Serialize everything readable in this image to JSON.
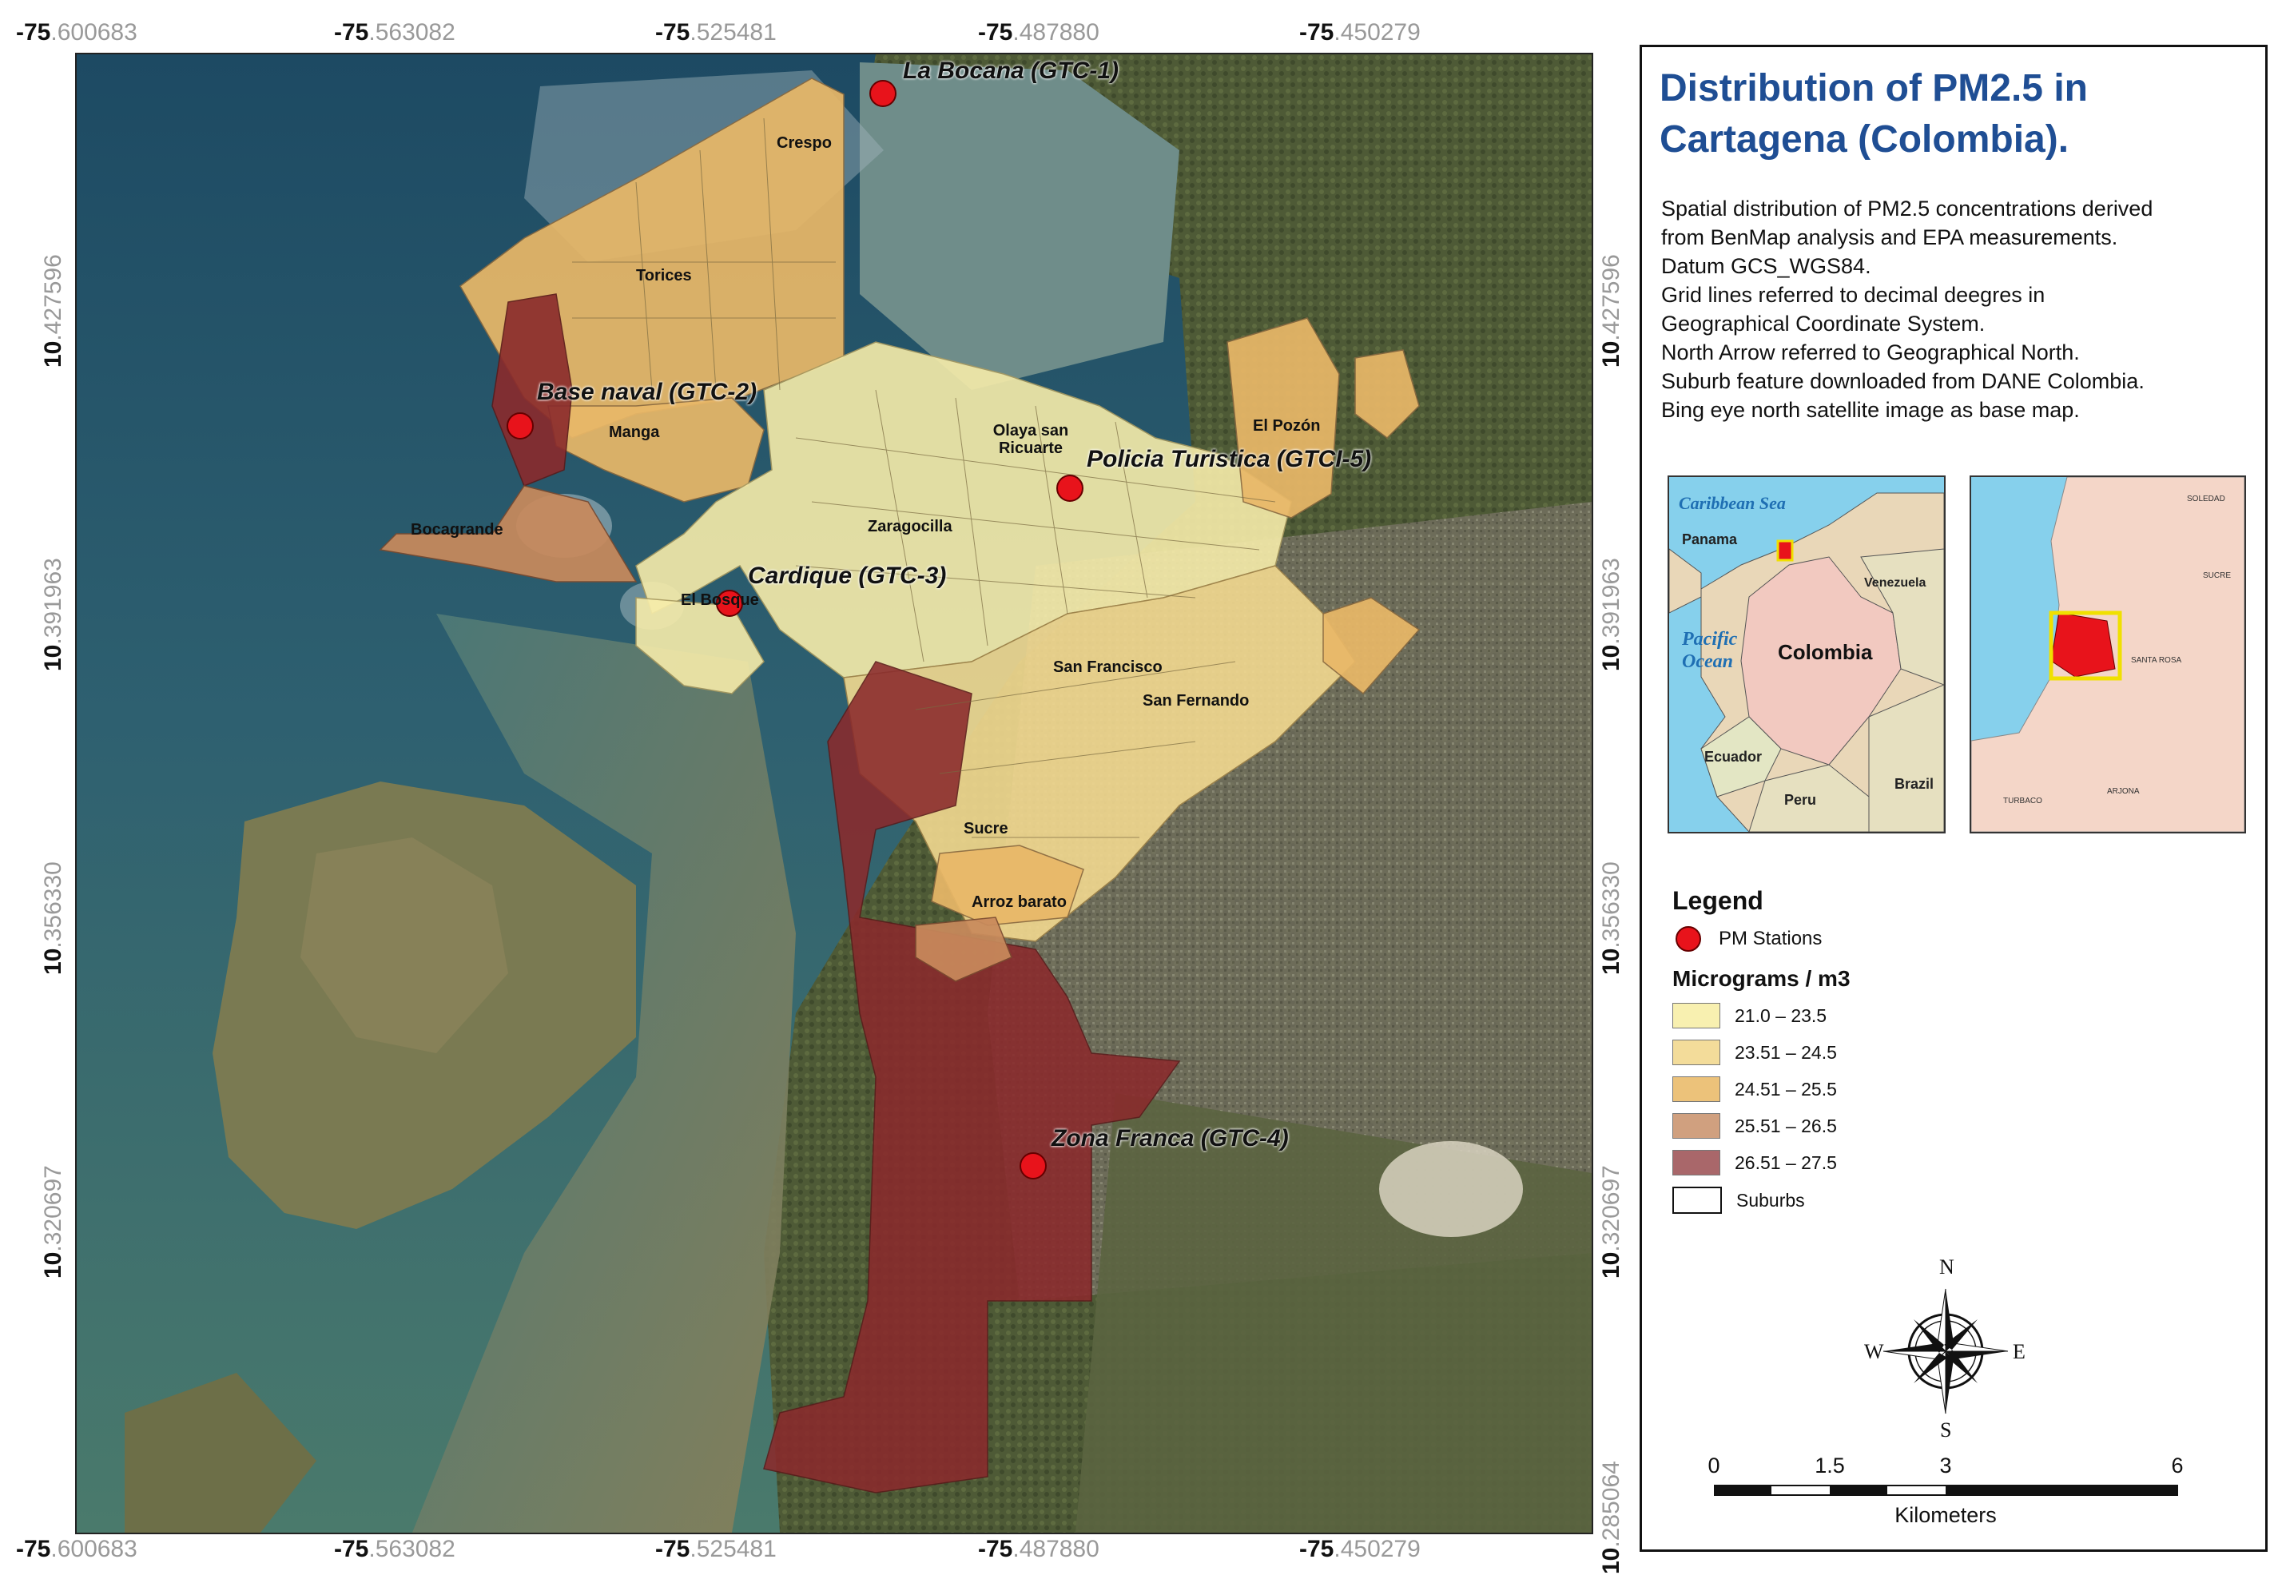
{
  "map": {
    "top_coords": [
      {
        "deg": "-75",
        "min": ".600683"
      },
      {
        "deg": "-75",
        "min": ".563082"
      },
      {
        "deg": "-75",
        "min": ".525481"
      },
      {
        "deg": "-75",
        "min": ".487880"
      },
      {
        "deg": "-75",
        "min": ".450279"
      }
    ],
    "bottom_coords": [
      {
        "deg": "-75",
        "min": ".600683"
      },
      {
        "deg": "-75",
        "min": ".563082"
      },
      {
        "deg": "-75",
        "min": ".525481"
      },
      {
        "deg": "-75",
        "min": ".487880"
      },
      {
        "deg": "-75",
        "min": ".450279"
      }
    ],
    "left_coords": [
      {
        "deg": "10",
        "min": ".427596"
      },
      {
        "deg": "10",
        "min": ".391963"
      },
      {
        "deg": "10",
        "min": ".356330"
      },
      {
        "deg": "10",
        "min": ".320697"
      }
    ],
    "right_coords": [
      {
        "deg": "10",
        "min": ".427596"
      },
      {
        "deg": "10",
        "min": ".391963"
      },
      {
        "deg": "10",
        "min": ".356330"
      },
      {
        "deg": "10",
        "min": ".320697"
      },
      {
        "deg": "10",
        "min": ".285064"
      }
    ],
    "stations": [
      {
        "label": "La Bocana (GTC-1)"
      },
      {
        "label": "Base naval (GTC-2)"
      },
      {
        "label": "Policia Turistica (GTCI-5)"
      },
      {
        "label": "Cardique (GTC-3)"
      },
      {
        "label": "Zona Franca (GTC-4)"
      }
    ],
    "suburbs": [
      "Crespo",
      "Torices",
      "Manga",
      "Bocagrande",
      "El Bosque",
      "Olaya san Ricuarte",
      "Zaragocilla",
      "El Pozón",
      "San Francisco",
      "San Fernando",
      "Sucre",
      "Arroz barato"
    ],
    "colors": {
      "c1": "#f6ecaa",
      "c2": "#f2d990",
      "c3": "#e9b868",
      "c4": "#c98a5c",
      "c5": "#8a2a2c",
      "station": "#e8131b",
      "sea": "#3f6f78",
      "deep_sea": "#1a3f5a",
      "land": "#6b6e4c"
    }
  },
  "panel": {
    "title_line1": "Distribution of PM2.5  in",
    "title_line2": "Cartagena (Colombia).",
    "desc": [
      "Spatial distribution of PM2.5 concentrations derived",
      "from BenMap analysis and EPA measurements.",
      "Datum GCS_WGS84.",
      "Grid lines referred to decimal deegres in",
      "Geographical Coordinate System.",
      "North Arrow referred to Geographical North.",
      "Suburb feature downloaded from DANE Colombia.",
      "Bing eye north satellite image as  base map."
    ],
    "inset1": {
      "caribbean": "Caribbean Sea",
      "panama": "Panama",
      "venezuela": "Venezuela",
      "pacific1": "Pacific",
      "pacific2": "Ocean",
      "colombia": "Colombia",
      "ecuador": "Ecuador",
      "peru": "Peru",
      "brazil": "Brazil"
    },
    "inset2": {
      "l1": "SOLEDAD",
      "l2": "SUCRE",
      "l3": "SANTA ROSA",
      "l4": "TURBACO",
      "l5": "ARJONA"
    },
    "legend": {
      "title": "Legend",
      "station_label": "PM Stations",
      "units": "Micrograms / m3",
      "classes": [
        {
          "label": "21.0 – 23.5",
          "color": "#f8f0b0"
        },
        {
          "label": "23.51 – 24.5",
          "color": "#f3dc9a"
        },
        {
          "label": "24.51 – 25.5",
          "color": "#ecc27a"
        },
        {
          "label": "25.51 – 26.5",
          "color": "#d0a07f"
        },
        {
          "label": "26.51 – 27.5",
          "color": "#a9676a"
        },
        {
          "label": "Suburbs",
          "color": "#ffffff"
        }
      ]
    },
    "compass": {
      "n": "N",
      "s": "S",
      "e": "E",
      "w": "W"
    },
    "scale": {
      "t0": "0",
      "t1": "1.5",
      "t2": "3",
      "t3": "6",
      "unit": "Kilometers"
    }
  }
}
